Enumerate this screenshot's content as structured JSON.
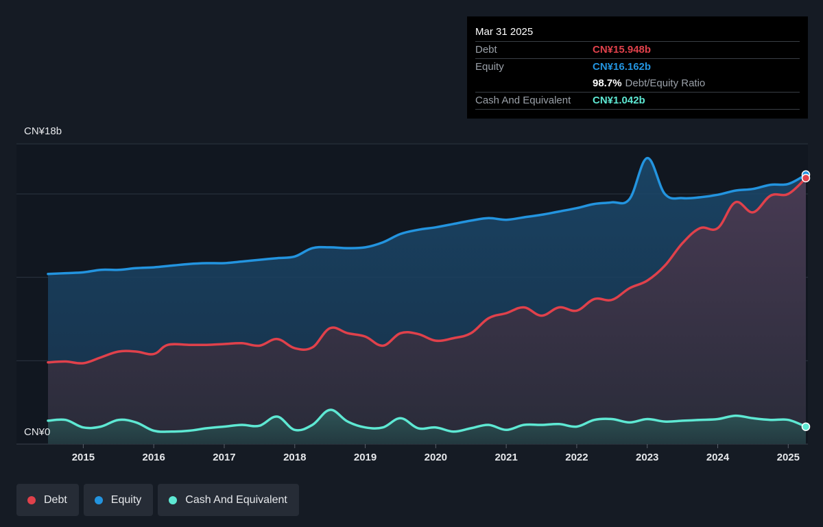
{
  "colors": {
    "background": "#151b24",
    "debt": "#e0414b",
    "equity": "#2394df",
    "cash": "#5ee8d3",
    "grid": "#2c3440"
  },
  "tooltip": {
    "date": "Mar 31 2025",
    "debt_label": "Debt",
    "debt_value": "CN¥15.948b",
    "equity_label": "Equity",
    "equity_value": "CN¥16.162b",
    "ratio_value": "98.7%",
    "ratio_label": "Debt/Equity Ratio",
    "cash_label": "Cash And Equivalent",
    "cash_value": "CN¥1.042b"
  },
  "legend": [
    {
      "label": "Debt",
      "color": "#e0414b"
    },
    {
      "label": "Equity",
      "color": "#2394df"
    },
    {
      "label": "Cash And Equivalent",
      "color": "#5ee8d3"
    }
  ],
  "chart_data": {
    "type": "area",
    "title": "",
    "xlabel": "",
    "ylabel": "",
    "y_unit": "CN¥ billions",
    "y_tick_labels": [
      "CN¥18b",
      "CN¥0"
    ],
    "ylim": [
      0,
      18
    ],
    "xlim": [
      2014.5,
      2025.25
    ],
    "x_ticks": [
      2015,
      2016,
      2017,
      2018,
      2019,
      2020,
      2021,
      2022,
      2023,
      2024,
      2025
    ],
    "grid": true,
    "legend_position": "bottom-left",
    "series": [
      {
        "name": "Debt",
        "color": "#e0414b",
        "points": [
          [
            2014.5,
            4.9
          ],
          [
            2014.75,
            4.95
          ],
          [
            2015.0,
            4.85
          ],
          [
            2015.25,
            5.2
          ],
          [
            2015.5,
            5.55
          ],
          [
            2015.75,
            5.55
          ],
          [
            2016.0,
            5.4
          ],
          [
            2016.2,
            5.95
          ],
          [
            2016.5,
            5.95
          ],
          [
            2016.75,
            5.95
          ],
          [
            2017.0,
            6.0
          ],
          [
            2017.25,
            6.05
          ],
          [
            2017.5,
            5.9
          ],
          [
            2017.75,
            6.3
          ],
          [
            2018.0,
            5.75
          ],
          [
            2018.25,
            5.8
          ],
          [
            2018.5,
            6.95
          ],
          [
            2018.75,
            6.65
          ],
          [
            2019.0,
            6.45
          ],
          [
            2019.25,
            5.9
          ],
          [
            2019.5,
            6.65
          ],
          [
            2019.75,
            6.6
          ],
          [
            2020.0,
            6.2
          ],
          [
            2020.25,
            6.35
          ],
          [
            2020.5,
            6.65
          ],
          [
            2020.75,
            7.55
          ],
          [
            2021.0,
            7.85
          ],
          [
            2021.25,
            8.2
          ],
          [
            2021.5,
            7.7
          ],
          [
            2021.75,
            8.2
          ],
          [
            2022.0,
            8.0
          ],
          [
            2022.25,
            8.7
          ],
          [
            2022.5,
            8.65
          ],
          [
            2022.75,
            9.35
          ],
          [
            2023.0,
            9.8
          ],
          [
            2023.25,
            10.7
          ],
          [
            2023.5,
            12.05
          ],
          [
            2023.75,
            12.95
          ],
          [
            2024.0,
            12.95
          ],
          [
            2024.25,
            14.5
          ],
          [
            2024.5,
            13.9
          ],
          [
            2024.75,
            14.9
          ],
          [
            2025.0,
            15.0
          ],
          [
            2025.25,
            15.95
          ]
        ]
      },
      {
        "name": "Equity",
        "color": "#2394df",
        "points": [
          [
            2014.5,
            10.2
          ],
          [
            2014.75,
            10.25
          ],
          [
            2015.0,
            10.3
          ],
          [
            2015.25,
            10.45
          ],
          [
            2015.5,
            10.45
          ],
          [
            2015.75,
            10.55
          ],
          [
            2016.0,
            10.6
          ],
          [
            2016.25,
            10.7
          ],
          [
            2016.5,
            10.8
          ],
          [
            2016.75,
            10.85
          ],
          [
            2017.0,
            10.85
          ],
          [
            2017.25,
            10.95
          ],
          [
            2017.5,
            11.05
          ],
          [
            2017.75,
            11.15
          ],
          [
            2018.0,
            11.25
          ],
          [
            2018.25,
            11.75
          ],
          [
            2018.5,
            11.8
          ],
          [
            2018.75,
            11.75
          ],
          [
            2019.0,
            11.8
          ],
          [
            2019.25,
            12.1
          ],
          [
            2019.5,
            12.6
          ],
          [
            2019.75,
            12.85
          ],
          [
            2020.0,
            13.0
          ],
          [
            2020.25,
            13.2
          ],
          [
            2020.5,
            13.4
          ],
          [
            2020.75,
            13.55
          ],
          [
            2021.0,
            13.45
          ],
          [
            2021.25,
            13.6
          ],
          [
            2021.5,
            13.75
          ],
          [
            2021.75,
            13.95
          ],
          [
            2022.0,
            14.15
          ],
          [
            2022.25,
            14.4
          ],
          [
            2022.5,
            14.5
          ],
          [
            2022.75,
            14.7
          ],
          [
            2023.0,
            17.15
          ],
          [
            2023.25,
            15.0
          ],
          [
            2023.5,
            14.75
          ],
          [
            2023.75,
            14.8
          ],
          [
            2024.0,
            14.95
          ],
          [
            2024.25,
            15.2
          ],
          [
            2024.5,
            15.3
          ],
          [
            2024.75,
            15.55
          ],
          [
            2025.0,
            15.6
          ],
          [
            2025.25,
            16.16
          ]
        ]
      },
      {
        "name": "Cash And Equivalent",
        "color": "#5ee8d3",
        "points": [
          [
            2014.5,
            1.4
          ],
          [
            2014.75,
            1.45
          ],
          [
            2015.0,
            1.0
          ],
          [
            2015.25,
            1.05
          ],
          [
            2015.5,
            1.45
          ],
          [
            2015.75,
            1.3
          ],
          [
            2016.0,
            0.8
          ],
          [
            2016.25,
            0.75
          ],
          [
            2016.5,
            0.8
          ],
          [
            2016.75,
            0.95
          ],
          [
            2017.0,
            1.05
          ],
          [
            2017.25,
            1.15
          ],
          [
            2017.5,
            1.1
          ],
          [
            2017.75,
            1.65
          ],
          [
            2018.0,
            0.85
          ],
          [
            2018.25,
            1.15
          ],
          [
            2018.5,
            2.05
          ],
          [
            2018.75,
            1.35
          ],
          [
            2019.0,
            1.0
          ],
          [
            2019.25,
            1.0
          ],
          [
            2019.5,
            1.55
          ],
          [
            2019.75,
            0.95
          ],
          [
            2020.0,
            1.0
          ],
          [
            2020.25,
            0.75
          ],
          [
            2020.5,
            0.95
          ],
          [
            2020.75,
            1.15
          ],
          [
            2021.0,
            0.85
          ],
          [
            2021.25,
            1.15
          ],
          [
            2021.5,
            1.15
          ],
          [
            2021.75,
            1.2
          ],
          [
            2022.0,
            1.05
          ],
          [
            2022.25,
            1.45
          ],
          [
            2022.5,
            1.5
          ],
          [
            2022.75,
            1.3
          ],
          [
            2023.0,
            1.5
          ],
          [
            2023.25,
            1.35
          ],
          [
            2023.5,
            1.4
          ],
          [
            2023.75,
            1.45
          ],
          [
            2024.0,
            1.5
          ],
          [
            2024.25,
            1.7
          ],
          [
            2024.5,
            1.55
          ],
          [
            2024.75,
            1.45
          ],
          [
            2025.0,
            1.45
          ],
          [
            2025.25,
            1.04
          ]
        ]
      }
    ]
  }
}
